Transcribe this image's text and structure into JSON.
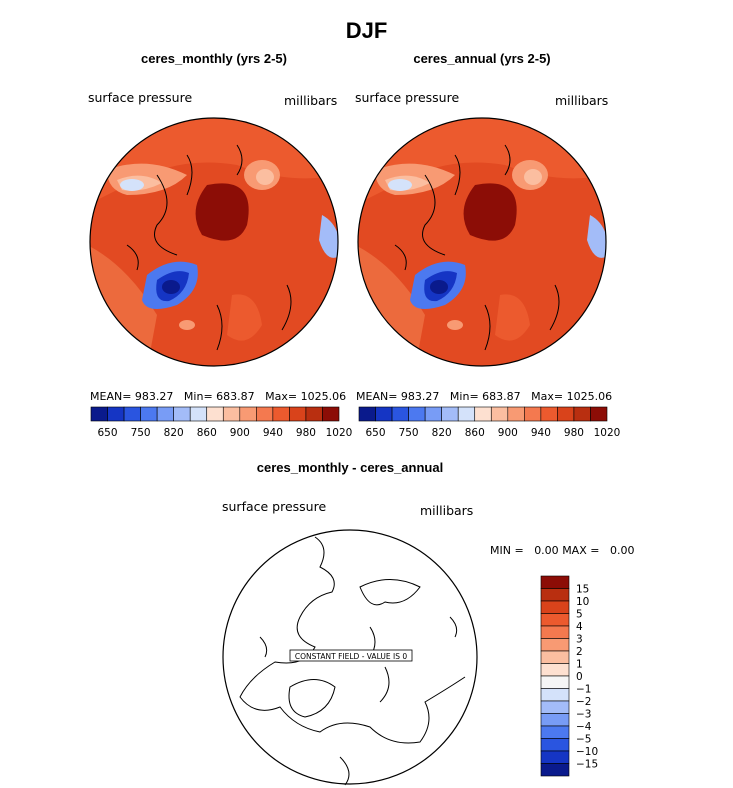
{
  "main_title": "DJF",
  "colors": {
    "blues": [
      "#0a1a8c",
      "#1535c4",
      "#2a55e0",
      "#4c79f0",
      "#789cf6",
      "#a3bcf8",
      "#d4e2fa"
    ],
    "reds": [
      "#fde0d0",
      "#fbbea0",
      "#f89a73",
      "#f4794f",
      "#ec5a2e",
      "#d9431b",
      "#b92f10",
      "#8c0d06"
    ],
    "diff": [
      "#0a1a8c",
      "#1535c4",
      "#2a55e0",
      "#4c79f0",
      "#789cf6",
      "#a3bcf8",
      "#d4e2fa",
      "#f5f5f5",
      "#fde0d0",
      "#fbbea0",
      "#f89a73",
      "#f4794f",
      "#ec5a2e",
      "#d9431b",
      "#b92f10",
      "#8c0d06"
    ]
  },
  "chart_data": [
    {
      "type": "heatmap",
      "title": "ceres_monthly (yrs 2-5)",
      "variable_label": "surface pressure",
      "units_label": "millibars",
      "stats": {
        "mean_label": "MEAN=",
        "mean": "983.27",
        "min_label": "Min=",
        "min": "683.87",
        "max_label": "Max=",
        "max": "1025.06"
      },
      "colorbar_labels": [
        "650",
        "750",
        "820",
        "860",
        "900",
        "940",
        "980",
        "1020"
      ]
    },
    {
      "type": "heatmap",
      "title": "ceres_annual (yrs 2-5)",
      "variable_label": "surface pressure",
      "units_label": "millibars",
      "stats": {
        "mean_label": "MEAN=",
        "mean": "983.27",
        "min_label": "Min=",
        "min": "683.87",
        "max_label": "Max=",
        "max": "1025.06"
      },
      "colorbar_labels": [
        "650",
        "750",
        "820",
        "860",
        "900",
        "940",
        "980",
        "1020"
      ]
    },
    {
      "type": "heatmap",
      "title": "ceres_monthly - ceres_annual",
      "variable_label": "surface pressure",
      "units_label": "millibars",
      "stats": {
        "min_label": "MIN =",
        "min": "0.00",
        "max_label": "MAX =",
        "max": "0.00"
      },
      "annotation": "CONSTANT FIELD - VALUE IS 0",
      "colorbar_labels": [
        "15",
        "10",
        "5",
        "4",
        "3",
        "2",
        "1",
        "0",
        "−1",
        "−2",
        "−3",
        "−4",
        "−5",
        "−10",
        "−15"
      ]
    }
  ]
}
